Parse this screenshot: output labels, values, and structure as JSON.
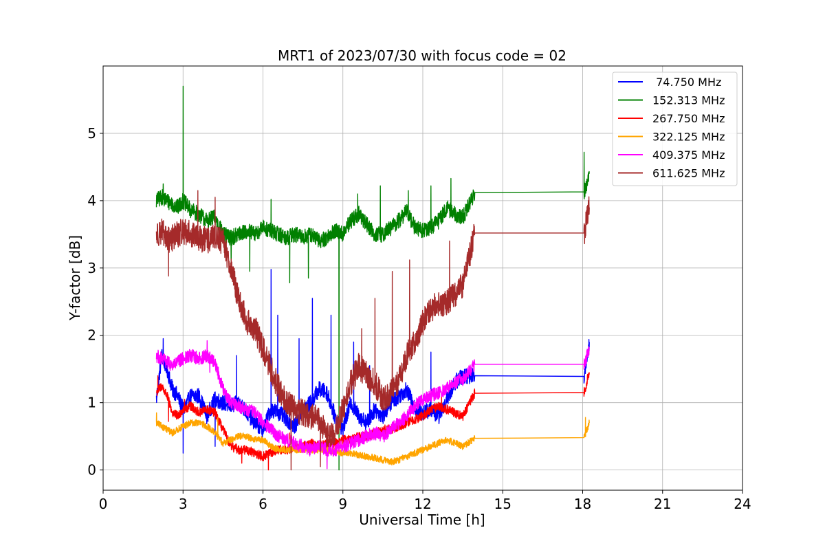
{
  "chart_data": {
    "type": "line",
    "title": "MRT1 of 2023/07/30 with focus code = 02",
    "xlabel": "Universal Time [h]",
    "ylabel": "Y-factor [dB]",
    "xlim": [
      0,
      24
    ],
    "ylim": [
      -0.3,
      6.0
    ],
    "xticks": [
      0,
      3,
      6,
      9,
      12,
      15,
      18,
      21,
      24
    ],
    "yticks": [
      0,
      1,
      2,
      3,
      4,
      5
    ],
    "grid": true,
    "legend_position": "top-right",
    "series": [
      {
        "name": " 74.750 MHz",
        "color": "#0000ff",
        "x": [
          2.0,
          2.2,
          2.4,
          2.6,
          2.8,
          3.0,
          3.3,
          3.6,
          3.9,
          4.2,
          4.5,
          4.8,
          5.1,
          5.4,
          5.7,
          6.0,
          6.3,
          6.6,
          6.9,
          7.2,
          7.5,
          7.8,
          8.1,
          8.4,
          8.7,
          9.0,
          9.3,
          9.6,
          9.9,
          10.2,
          10.5,
          10.8,
          11.1,
          11.4,
          11.7,
          12.0,
          12.3,
          12.6,
          12.9,
          13.2,
          13.5,
          13.95,
          18.05,
          18.25
        ],
        "y": [
          1.05,
          1.7,
          1.5,
          1.2,
          1.1,
          0.9,
          1.1,
          1.1,
          0.8,
          1.05,
          1.0,
          0.95,
          1.0,
          0.85,
          0.7,
          0.6,
          0.9,
          0.85,
          0.75,
          0.65,
          0.9,
          1.0,
          1.2,
          1.15,
          0.8,
          0.6,
          1.0,
          0.8,
          0.7,
          0.9,
          0.8,
          1.0,
          1.1,
          1.2,
          0.9,
          0.85,
          0.9,
          0.8,
          1.05,
          1.3,
          1.4,
          1.4,
          1.39,
          1.9
        ],
        "noise": 0.12,
        "spikes": [
          [
            2.25,
            1.95
          ],
          [
            3.0,
            0.25
          ],
          [
            4.2,
            0.35
          ],
          [
            5.0,
            1.7
          ],
          [
            6.3,
            2.98
          ],
          [
            6.55,
            2.3
          ],
          [
            7.35,
            1.95
          ],
          [
            7.85,
            2.55
          ],
          [
            8.55,
            2.3
          ],
          [
            9.4,
            1.9
          ],
          [
            10.0,
            1.55
          ],
          [
            12.3,
            1.75
          ]
        ]
      },
      {
        "name": "152.313 MHz",
        "color": "#008000",
        "x": [
          2.0,
          2.2,
          2.4,
          2.6,
          2.8,
          3.0,
          3.3,
          3.6,
          3.9,
          4.2,
          4.5,
          4.8,
          5.1,
          5.4,
          5.7,
          6.0,
          6.3,
          6.6,
          6.9,
          7.2,
          7.5,
          7.8,
          8.1,
          8.4,
          8.7,
          9.0,
          9.3,
          9.6,
          9.9,
          10.2,
          10.5,
          10.8,
          11.1,
          11.4,
          11.7,
          12.0,
          12.3,
          12.6,
          12.9,
          13.2,
          13.5,
          13.95,
          18.05,
          18.25
        ],
        "y": [
          4.0,
          4.05,
          4.0,
          3.95,
          3.9,
          4.0,
          3.85,
          3.8,
          3.7,
          3.75,
          3.5,
          3.45,
          3.5,
          3.55,
          3.5,
          3.6,
          3.55,
          3.5,
          3.45,
          3.5,
          3.45,
          3.5,
          3.4,
          3.45,
          3.55,
          3.5,
          3.7,
          3.8,
          3.65,
          3.5,
          3.5,
          3.6,
          3.7,
          3.85,
          3.6,
          3.55,
          3.6,
          3.7,
          3.9,
          3.8,
          3.75,
          4.12,
          4.13,
          4.4
        ],
        "noise": 0.12,
        "spikes": [
          [
            2.25,
            4.25
          ],
          [
            3.0,
            5.7
          ],
          [
            4.8,
            3.05
          ],
          [
            5.5,
            2.95
          ],
          [
            6.3,
            4.02
          ],
          [
            7.0,
            2.78
          ],
          [
            7.7,
            2.85
          ],
          [
            8.85,
            0.0
          ],
          [
            9.55,
            4.1
          ],
          [
            10.4,
            4.22
          ],
          [
            11.45,
            4.15
          ],
          [
            12.3,
            4.22
          ],
          [
            13.05,
            4.33
          ],
          [
            18.05,
            4.72
          ]
        ]
      },
      {
        "name": "267.750 MHz",
        "color": "#ff0000",
        "x": [
          2.0,
          2.2,
          2.4,
          2.6,
          2.8,
          3.0,
          3.3,
          3.6,
          3.9,
          4.2,
          4.5,
          4.8,
          5.1,
          5.4,
          5.7,
          6.0,
          6.3,
          6.6,
          6.9,
          7.2,
          7.5,
          7.8,
          8.1,
          8.4,
          8.7,
          9.0,
          9.3,
          9.6,
          9.9,
          10.2,
          10.5,
          10.8,
          11.1,
          11.4,
          11.7,
          12.0,
          12.3,
          12.6,
          12.9,
          13.2,
          13.5,
          13.95,
          18.05,
          18.25
        ],
        "y": [
          1.15,
          1.25,
          1.1,
          0.85,
          0.8,
          0.9,
          0.95,
          0.85,
          0.9,
          0.85,
          0.6,
          0.35,
          0.3,
          0.3,
          0.25,
          0.2,
          0.25,
          0.3,
          0.3,
          0.35,
          0.35,
          0.4,
          0.35,
          0.4,
          0.4,
          0.45,
          0.45,
          0.5,
          0.5,
          0.55,
          0.6,
          0.6,
          0.65,
          0.7,
          0.75,
          0.8,
          0.9,
          0.95,
          0.9,
          0.85,
          0.8,
          1.14,
          1.15,
          1.45
        ],
        "noise": 0.07,
        "spikes": [
          [
            2.05,
            1.4
          ],
          [
            2.45,
            0.72
          ],
          [
            3.05,
            1.05
          ],
          [
            5.2,
            0.1
          ],
          [
            6.2,
            0.0
          ],
          [
            7.0,
            0.55
          ],
          [
            12.7,
            1.1
          ]
        ]
      },
      {
        "name": "322.125 MHz",
        "color": "#ffa500",
        "x": [
          2.0,
          2.2,
          2.4,
          2.6,
          2.8,
          3.0,
          3.3,
          3.6,
          3.9,
          4.2,
          4.5,
          4.8,
          5.1,
          5.4,
          5.7,
          6.0,
          6.3,
          6.6,
          6.9,
          7.2,
          7.5,
          7.8,
          8.1,
          8.4,
          8.7,
          9.0,
          9.3,
          9.6,
          9.9,
          10.2,
          10.5,
          10.8,
          11.1,
          11.4,
          11.7,
          12.0,
          12.3,
          12.6,
          12.9,
          13.2,
          13.5,
          13.95,
          18.05,
          18.25
        ],
        "y": [
          0.7,
          0.65,
          0.6,
          0.55,
          0.6,
          0.65,
          0.7,
          0.7,
          0.65,
          0.55,
          0.4,
          0.45,
          0.5,
          0.5,
          0.45,
          0.45,
          0.35,
          0.3,
          0.3,
          0.3,
          0.3,
          0.3,
          0.3,
          0.3,
          0.28,
          0.25,
          0.25,
          0.22,
          0.2,
          0.18,
          0.15,
          0.12,
          0.15,
          0.2,
          0.25,
          0.3,
          0.35,
          0.4,
          0.45,
          0.4,
          0.35,
          0.47,
          0.48,
          0.7
        ],
        "noise": 0.05,
        "spikes": [
          [
            2.0,
            0.85
          ],
          [
            4.3,
            0.78
          ],
          [
            18.1,
            0.78
          ]
        ]
      },
      {
        "name": "409.375 MHz",
        "color": "#ff00ff",
        "x": [
          2.0,
          2.2,
          2.4,
          2.6,
          2.8,
          3.0,
          3.3,
          3.6,
          3.9,
          4.2,
          4.5,
          4.8,
          5.1,
          5.4,
          5.7,
          6.0,
          6.3,
          6.6,
          6.9,
          7.2,
          7.5,
          7.8,
          8.1,
          8.4,
          8.7,
          9.0,
          9.3,
          9.6,
          9.9,
          10.2,
          10.5,
          10.8,
          11.1,
          11.4,
          11.7,
          12.0,
          12.3,
          12.6,
          12.9,
          13.2,
          13.5,
          13.95,
          18.05,
          18.25
        ],
        "y": [
          1.7,
          1.65,
          1.6,
          1.55,
          1.6,
          1.65,
          1.7,
          1.65,
          1.7,
          1.6,
          1.2,
          1.0,
          0.95,
          0.9,
          0.85,
          0.7,
          0.6,
          0.5,
          0.45,
          0.4,
          0.35,
          0.3,
          0.35,
          0.3,
          0.3,
          0.35,
          0.4,
          0.45,
          0.5,
          0.55,
          0.5,
          0.6,
          0.7,
          0.8,
          0.95,
          1.05,
          1.1,
          1.15,
          1.2,
          1.3,
          1.35,
          1.57,
          1.57,
          1.8
        ],
        "noise": 0.1,
        "spikes": [
          [
            3.9,
            1.92
          ],
          [
            4.0,
            1.45
          ],
          [
            8.4,
            0.02
          ]
        ]
      },
      {
        "name": "611.625 MHz",
        "color": "#a52a2a",
        "x": [
          2.0,
          2.2,
          2.4,
          2.6,
          2.8,
          3.0,
          3.3,
          3.6,
          3.9,
          4.2,
          4.5,
          4.8,
          5.1,
          5.4,
          5.7,
          6.0,
          6.3,
          6.6,
          6.9,
          7.2,
          7.5,
          7.8,
          8.1,
          8.4,
          8.7,
          9.0,
          9.3,
          9.6,
          9.9,
          10.2,
          10.5,
          10.8,
          11.1,
          11.4,
          11.7,
          12.0,
          12.3,
          12.6,
          12.9,
          13.2,
          13.5,
          13.95,
          18.05,
          18.25
        ],
        "y": [
          3.5,
          3.55,
          3.4,
          3.45,
          3.5,
          3.55,
          3.5,
          3.45,
          3.4,
          3.45,
          3.4,
          3.0,
          2.5,
          2.2,
          2.1,
          1.8,
          1.5,
          1.2,
          1.0,
          0.9,
          0.85,
          0.8,
          0.75,
          0.5,
          0.55,
          0.9,
          1.3,
          1.55,
          1.4,
          1.3,
          1.05,
          1.15,
          1.3,
          1.7,
          1.9,
          2.2,
          2.4,
          2.45,
          2.5,
          2.6,
          2.75,
          3.52,
          3.52,
          3.9
        ],
        "noise": 0.2,
        "spikes": [
          [
            2.45,
            2.88
          ],
          [
            3.55,
            4.15
          ],
          [
            4.2,
            4.05
          ],
          [
            7.05,
            0.0
          ],
          [
            8.15,
            0.05
          ],
          [
            9.7,
            2.1
          ],
          [
            10.2,
            2.55
          ],
          [
            10.85,
            2.95
          ],
          [
            11.5,
            3.12
          ],
          [
            13.0,
            3.4
          ]
        ]
      }
    ]
  }
}
